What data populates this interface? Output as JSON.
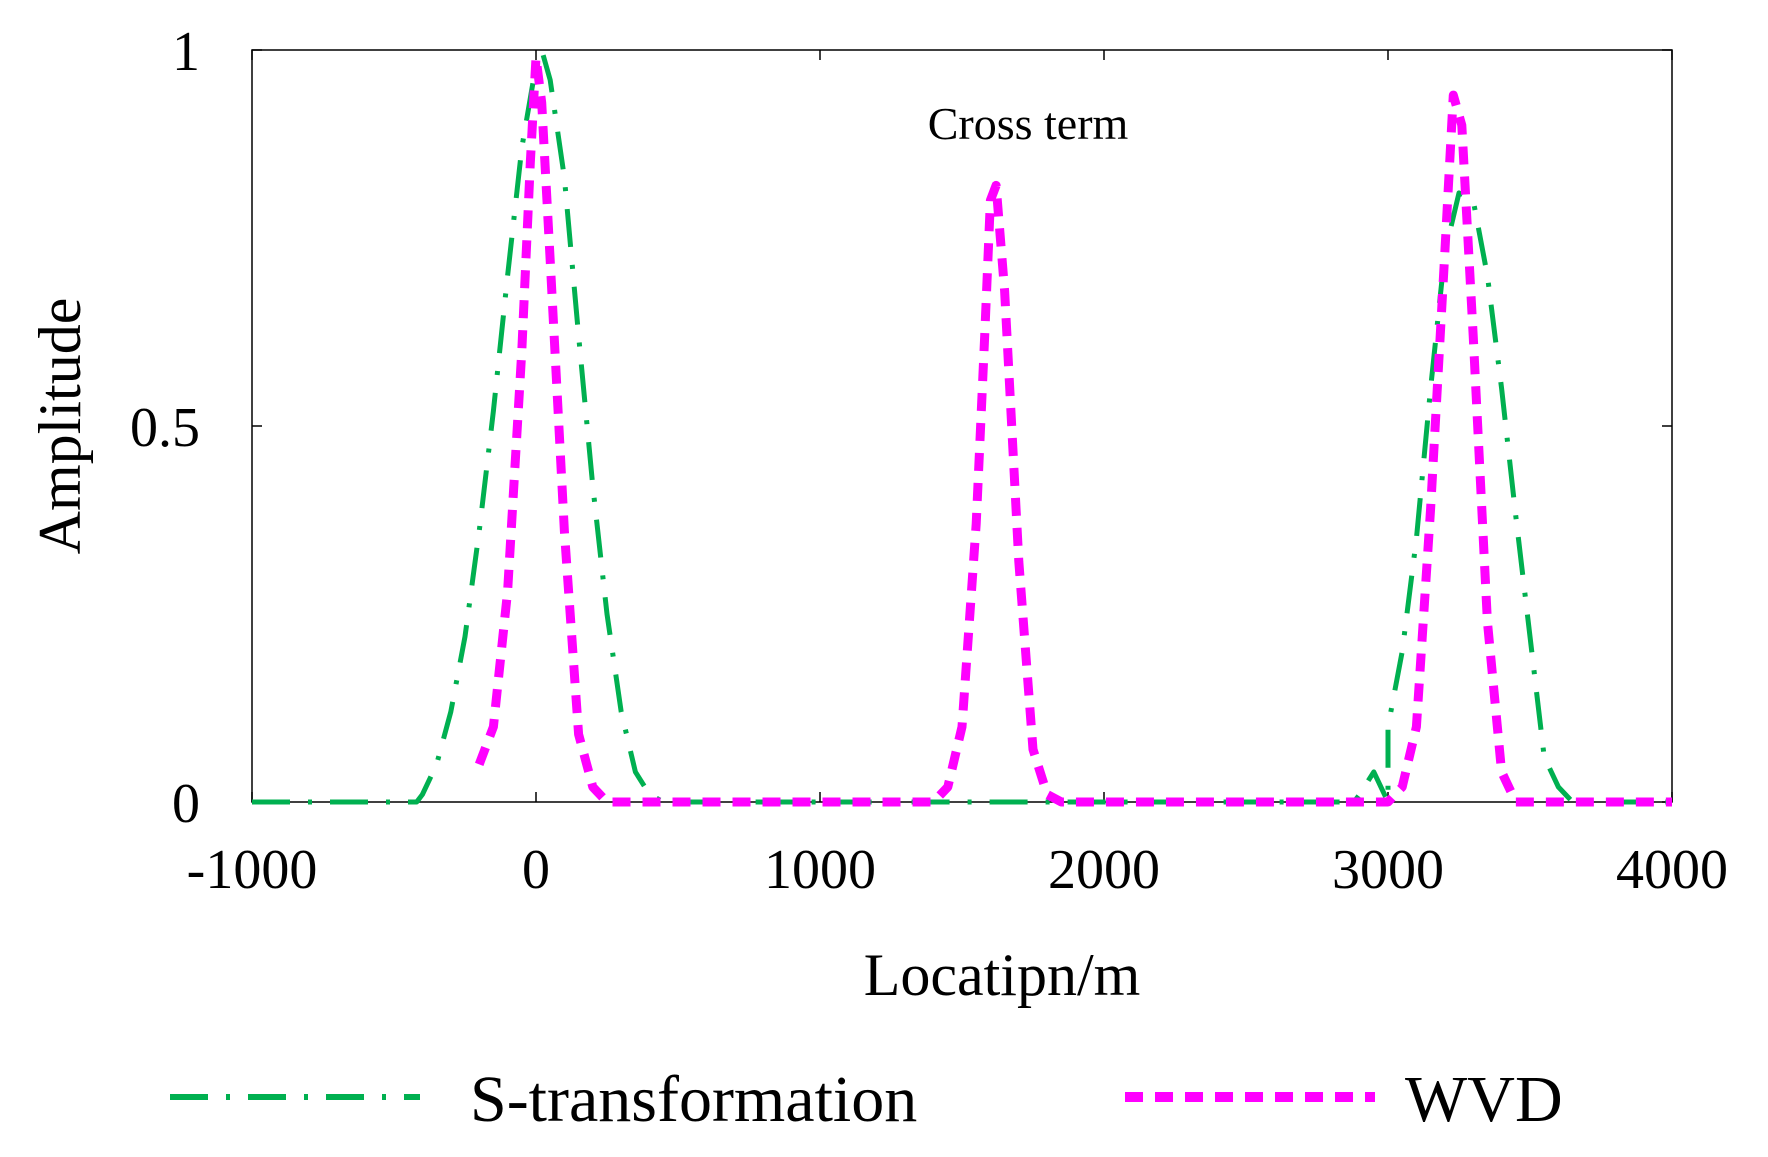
{
  "chart_data": {
    "type": "line",
    "title": "",
    "xlabel": "Locatipn/m",
    "ylabel": "Amplitude",
    "xlim": [
      -1000,
      4000
    ],
    "ylim": [
      0,
      1
    ],
    "xticks": [
      -1000,
      0,
      1000,
      2000,
      3000,
      4000
    ],
    "xtick_labels": [
      "-1000",
      "0",
      "1000",
      "2000",
      "3000",
      "4000"
    ],
    "yticks": [
      0,
      0.5,
      1
    ],
    "ytick_labels": [
      "0",
      "0.5",
      "1"
    ],
    "grid": false,
    "legend_position": "bottom",
    "annotation": {
      "text": "Cross term",
      "x": 1700,
      "y": 0.9
    },
    "series": [
      {
        "name": "S-transformation",
        "color": "#00b050",
        "style": "dash-dot",
        "points": [
          [
            -1000,
            0
          ],
          [
            -600,
            0
          ],
          [
            -420,
            0
          ],
          [
            -400,
            0.01
          ],
          [
            -350,
            0.05
          ],
          [
            -300,
            0.12
          ],
          [
            -250,
            0.22
          ],
          [
            -200,
            0.36
          ],
          [
            -150,
            0.52
          ],
          [
            -100,
            0.7
          ],
          [
            -50,
            0.87
          ],
          [
            0,
            0.98
          ],
          [
            20,
            1.0
          ],
          [
            50,
            0.96
          ],
          [
            100,
            0.83
          ],
          [
            150,
            0.62
          ],
          [
            200,
            0.42
          ],
          [
            250,
            0.25
          ],
          [
            300,
            0.12
          ],
          [
            350,
            0.04
          ],
          [
            400,
            0.01
          ],
          [
            450,
            0
          ],
          [
            3000,
            0
          ],
          [
            2880,
            0
          ],
          [
            2900,
            0.01
          ],
          [
            2950,
            0.04
          ],
          [
            3000,
            0.1
          ],
          [
            3050,
            0.2
          ],
          [
            3100,
            0.35
          ],
          [
            3150,
            0.55
          ],
          [
            3200,
            0.73
          ],
          [
            3250,
            0.81
          ],
          [
            3300,
            0.8
          ],
          [
            3350,
            0.7
          ],
          [
            3400,
            0.55
          ],
          [
            3450,
            0.38
          ],
          [
            3500,
            0.22
          ],
          [
            3550,
            0.06
          ],
          [
            3600,
            0.02
          ],
          [
            3650,
            0
          ],
          [
            4000,
            0
          ]
        ]
      },
      {
        "name": "WVD",
        "color": "#ff00ff",
        "style": "dashed",
        "points": [
          [
            -200,
            0.05
          ],
          [
            -150,
            0.1
          ],
          [
            -100,
            0.28
          ],
          [
            -50,
            0.6
          ],
          [
            -20,
            0.85
          ],
          [
            0,
            0.99
          ],
          [
            20,
            0.93
          ],
          [
            50,
            0.72
          ],
          [
            100,
            0.36
          ],
          [
            150,
            0.09
          ],
          [
            200,
            0.02
          ],
          [
            250,
            0
          ],
          [
            1400,
            0
          ],
          [
            1450,
            0.02
          ],
          [
            1500,
            0.1
          ],
          [
            1550,
            0.37
          ],
          [
            1580,
            0.62
          ],
          [
            1600,
            0.8
          ],
          [
            1620,
            0.82
          ],
          [
            1650,
            0.68
          ],
          [
            1700,
            0.32
          ],
          [
            1750,
            0.07
          ],
          [
            1800,
            0.01
          ],
          [
            1850,
            0
          ],
          [
            3000,
            0
          ],
          [
            3050,
            0.02
          ],
          [
            3100,
            0.1
          ],
          [
            3150,
            0.39
          ],
          [
            3200,
            0.73
          ],
          [
            3230,
            0.94
          ],
          [
            3260,
            0.9
          ],
          [
            3300,
            0.62
          ],
          [
            3350,
            0.24
          ],
          [
            3400,
            0.04
          ],
          [
            3450,
            0
          ],
          [
            4000,
            0
          ]
        ]
      }
    ]
  }
}
